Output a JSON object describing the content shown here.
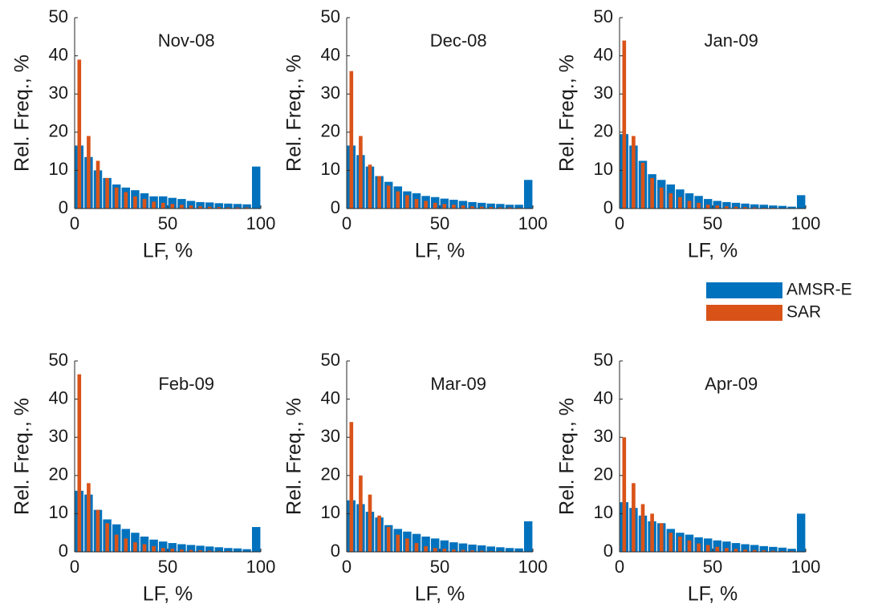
{
  "chart_data": [
    {
      "type": "histogram",
      "title": "Nov-08",
      "xlabel": "LF, %",
      "ylabel": "Rel. Freq., %",
      "bins": [
        0,
        5,
        10,
        15,
        20,
        25,
        30,
        35,
        40,
        45,
        50,
        55,
        60,
        65,
        70,
        75,
        80,
        85,
        90,
        95,
        100
      ],
      "xlim": [
        0,
        100
      ],
      "ylim": [
        0,
        50
      ],
      "xticks": [
        0,
        50,
        100
      ],
      "yticks": [
        0,
        10,
        20,
        30,
        40,
        50
      ],
      "series": [
        {
          "name": "AMSR-E",
          "color": "#0072bd",
          "values": [
            16.5,
            13.5,
            10,
            8,
            6.3,
            5.5,
            4.8,
            4,
            3.2,
            3.2,
            2.8,
            2.5,
            2,
            1.7,
            1.6,
            1.4,
            1.3,
            1.2,
            1.1,
            11
          ]
        },
        {
          "name": "SAR",
          "color": "#d95319",
          "values": [
            39,
            19,
            12.5,
            8,
            5.5,
            4.3,
            3.2,
            2.5,
            1.8,
            1.5,
            1.2,
            1,
            0.8,
            0.6,
            0.5,
            0.4,
            0.3,
            0.3,
            0.3,
            0
          ]
        }
      ]
    },
    {
      "type": "histogram",
      "title": "Dec-08",
      "xlabel": "LF, %",
      "ylabel": "Rel. Freq., %",
      "bins": [
        0,
        5,
        10,
        15,
        20,
        25,
        30,
        35,
        40,
        45,
        50,
        55,
        60,
        65,
        70,
        75,
        80,
        85,
        90,
        95,
        100
      ],
      "xlim": [
        0,
        100
      ],
      "ylim": [
        0,
        50
      ],
      "xticks": [
        0,
        50,
        100
      ],
      "yticks": [
        0,
        10,
        20,
        30,
        40,
        50
      ],
      "series": [
        {
          "name": "AMSR-E",
          "color": "#0072bd",
          "values": [
            16.5,
            14,
            11,
            8.5,
            7,
            5.8,
            4.5,
            4,
            3.3,
            3,
            2.6,
            2.3,
            2,
            1.7,
            1.5,
            1.3,
            1.2,
            1,
            1,
            7.5
          ]
        },
        {
          "name": "SAR",
          "color": "#d95319",
          "values": [
            36,
            19,
            11.5,
            8.5,
            6,
            4.5,
            3.5,
            2.5,
            2,
            1.5,
            1.2,
            1,
            0.8,
            0.6,
            0.5,
            0.4,
            0.3,
            0.3,
            0.2,
            0
          ]
        }
      ]
    },
    {
      "type": "histogram",
      "title": "Jan-09",
      "xlabel": "LF, %",
      "ylabel": "Rel. Freq., %",
      "bins": [
        0,
        5,
        10,
        15,
        20,
        25,
        30,
        35,
        40,
        45,
        50,
        55,
        60,
        65,
        70,
        75,
        80,
        85,
        90,
        95,
        100
      ],
      "xlim": [
        0,
        100
      ],
      "ylim": [
        0,
        50
      ],
      "xticks": [
        0,
        50,
        100
      ],
      "yticks": [
        0,
        10,
        20,
        30,
        40,
        50
      ],
      "series": [
        {
          "name": "AMSR-E",
          "color": "#0072bd",
          "values": [
            19.5,
            16.5,
            12.5,
            9,
            7.5,
            6.3,
            5,
            4,
            3.3,
            2.5,
            2,
            1.7,
            1.5,
            1.3,
            1.1,
            1,
            0.8,
            0.7,
            0.5,
            3.5
          ]
        },
        {
          "name": "SAR",
          "color": "#d95319",
          "values": [
            44,
            19,
            12,
            8,
            5.5,
            4,
            3,
            2,
            1.5,
            1,
            0.8,
            0.6,
            0.5,
            0.4,
            0.3,
            0.2,
            0.2,
            0.1,
            0.1,
            0
          ]
        }
      ]
    },
    {
      "type": "histogram",
      "title": "Feb-09",
      "xlabel": "LF, %",
      "ylabel": "Rel. Freq., %",
      "bins": [
        0,
        5,
        10,
        15,
        20,
        25,
        30,
        35,
        40,
        45,
        50,
        55,
        60,
        65,
        70,
        75,
        80,
        85,
        90,
        95,
        100
      ],
      "xlim": [
        0,
        100
      ],
      "ylim": [
        0,
        50
      ],
      "xticks": [
        0,
        50,
        100
      ],
      "yticks": [
        0,
        10,
        20,
        30,
        40,
        50
      ],
      "series": [
        {
          "name": "AMSR-E",
          "color": "#0072bd",
          "values": [
            16,
            15,
            11,
            8.5,
            7.2,
            6,
            5,
            4,
            3.2,
            2.7,
            2.3,
            2,
            1.8,
            1.6,
            1.4,
            1.2,
            1,
            0.9,
            0.7,
            6.5
          ]
        },
        {
          "name": "SAR",
          "color": "#d95319",
          "values": [
            46.5,
            18,
            11,
            7.5,
            4.5,
            3.5,
            2.5,
            2,
            1.5,
            1,
            0.8,
            0.6,
            0.5,
            0.4,
            0.3,
            0.2,
            0.2,
            0.1,
            0.1,
            0
          ]
        }
      ]
    },
    {
      "type": "histogram",
      "title": "Mar-09",
      "xlabel": "LF, %",
      "ylabel": "Rel. Freq., %",
      "bins": [
        0,
        5,
        10,
        15,
        20,
        25,
        30,
        35,
        40,
        45,
        50,
        55,
        60,
        65,
        70,
        75,
        80,
        85,
        90,
        95,
        100
      ],
      "xlim": [
        0,
        100
      ],
      "ylim": [
        0,
        50
      ],
      "xticks": [
        0,
        50,
        100
      ],
      "yticks": [
        0,
        10,
        20,
        30,
        40,
        50
      ],
      "series": [
        {
          "name": "AMSR-E",
          "color": "#0072bd",
          "values": [
            13.5,
            12.5,
            10.5,
            9,
            7,
            6,
            5.3,
            4.7,
            4,
            3.5,
            3,
            2.5,
            2.2,
            1.9,
            1.7,
            1.4,
            1.2,
            1,
            0.9,
            8
          ]
        },
        {
          "name": "SAR",
          "color": "#d95319",
          "values": [
            34,
            20,
            15,
            9.5,
            6.5,
            4.5,
            3.5,
            2.3,
            1.5,
            1,
            0.8,
            0.6,
            0.5,
            0.4,
            0.3,
            0.2,
            0.2,
            0.1,
            0.1,
            0
          ]
        }
      ]
    },
    {
      "type": "histogram",
      "title": "Apr-09",
      "xlabel": "LF, %",
      "ylabel": "Rel. Freq., %",
      "bins": [
        0,
        5,
        10,
        15,
        20,
        25,
        30,
        35,
        40,
        45,
        50,
        55,
        60,
        65,
        70,
        75,
        80,
        85,
        90,
        95,
        100
      ],
      "xlim": [
        0,
        100
      ],
      "ylim": [
        0,
        50
      ],
      "xticks": [
        0,
        50,
        100
      ],
      "yticks": [
        0,
        10,
        20,
        30,
        40,
        50
      ],
      "series": [
        {
          "name": "AMSR-E",
          "color": "#0072bd",
          "values": [
            13,
            11.5,
            9.5,
            8,
            7.5,
            6,
            5,
            4.5,
            3.8,
            3.5,
            3,
            2.7,
            2.3,
            2,
            1.8,
            1.5,
            1.3,
            1.1,
            0.8,
            10
          ]
        },
        {
          "name": "SAR",
          "color": "#d95319",
          "values": [
            30,
            18,
            12.5,
            10,
            7.5,
            5,
            4,
            3,
            2.2,
            1.8,
            1.3,
            1,
            0.8,
            0.6,
            0.5,
            0.4,
            0.3,
            0.2,
            0.2,
            0
          ]
        }
      ]
    }
  ]
}
